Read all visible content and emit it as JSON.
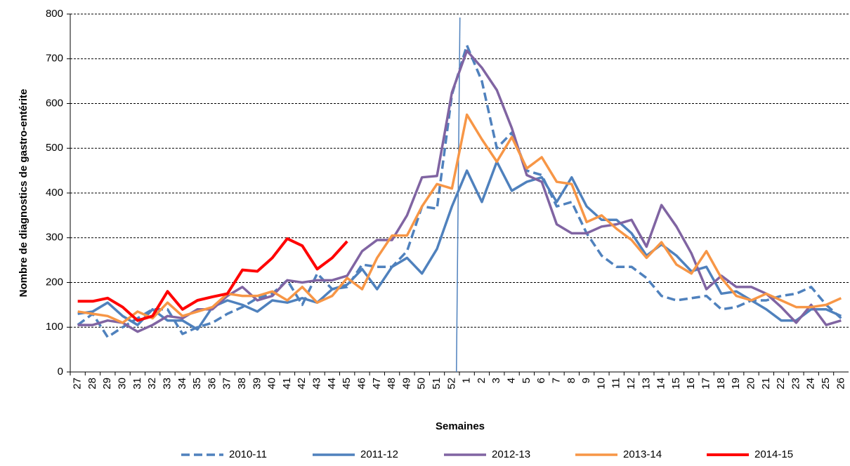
{
  "chart_data": {
    "type": "line",
    "y_label": "Nombre de diagnostics de gastro-entérite",
    "x_label": "Semaines",
    "categories": [
      "27",
      "28",
      "29",
      "30",
      "31",
      "32",
      "33",
      "34",
      "35",
      "36",
      "37",
      "38",
      "39",
      "40",
      "41",
      "42",
      "43",
      "44",
      "45",
      "46",
      "47",
      "48",
      "49",
      "50",
      "51",
      "52",
      "1",
      "2",
      "3",
      "4",
      "5",
      "6",
      "7",
      "8",
      "9",
      "10",
      "11",
      "12",
      "13",
      "14",
      "15",
      "16",
      "17",
      "18",
      "19",
      "20",
      "21",
      "22",
      "23",
      "24",
      "25",
      "26"
    ],
    "ylim": [
      0,
      800
    ],
    "yticks": [
      0,
      100,
      200,
      300,
      400,
      500,
      600,
      700,
      800
    ],
    "grid": true,
    "legend": "bottom",
    "series": [
      {
        "name": "2010-11",
        "color": "#4f81bd",
        "dash": true,
        "values": [
          105,
          130,
          78,
          100,
          120,
          140,
          140,
          85,
          100,
          110,
          130,
          145,
          165,
          175,
          205,
          150,
          220,
          185,
          190,
          240,
          235,
          235,
          270,
          370,
          365,
          620,
          730,
          650,
          500,
          535,
          450,
          440,
          370,
          380,
          310,
          260,
          235,
          235,
          210,
          170,
          160,
          165,
          170,
          140,
          145,
          160,
          160,
          170,
          175,
          190,
          150,
          120
        ]
      },
      {
        "name": "2011-12",
        "color": "#4f81bd",
        "dash": false,
        "values": [
          130,
          135,
          155,
          125,
          105,
          140,
          115,
          115,
          95,
          145,
          160,
          150,
          135,
          160,
          155,
          165,
          155,
          185,
          195,
          230,
          185,
          235,
          255,
          220,
          275,
          370,
          450,
          380,
          470,
          405,
          425,
          435,
          380,
          435,
          370,
          340,
          340,
          310,
          260,
          285,
          260,
          225,
          235,
          175,
          180,
          160,
          140,
          115,
          115,
          140,
          140,
          125
        ]
      },
      {
        "name": "2012-13",
        "color": "#8064a2",
        "dash": false,
        "values": [
          105,
          105,
          115,
          110,
          90,
          105,
          125,
          120,
          140,
          140,
          170,
          190,
          160,
          170,
          205,
          200,
          205,
          205,
          215,
          270,
          295,
          295,
          350,
          435,
          438,
          625,
          718,
          680,
          630,
          545,
          440,
          425,
          330,
          310,
          310,
          325,
          330,
          340,
          280,
          373,
          325,
          265,
          185,
          215,
          190,
          190,
          175,
          145,
          110,
          150,
          105,
          115
        ]
      },
      {
        "name": "2013-14",
        "color": "#f79646",
        "dash": false,
        "values": [
          135,
          130,
          125,
          110,
          135,
          120,
          155,
          125,
          135,
          145,
          175,
          170,
          170,
          180,
          160,
          190,
          155,
          170,
          210,
          185,
          255,
          305,
          305,
          370,
          420,
          410,
          575,
          520,
          470,
          525,
          455,
          480,
          425,
          420,
          335,
          350,
          320,
          295,
          255,
          290,
          240,
          220,
          270,
          210,
          170,
          160,
          175,
          160,
          145,
          145,
          150,
          165
        ]
      },
      {
        "name": "2014-15",
        "color": "#ff0000",
        "dash": false,
        "values": [
          158,
          158,
          165,
          145,
          115,
          125,
          180,
          140,
          160,
          168,
          175,
          228,
          225,
          255,
          298,
          282,
          230,
          255,
          292,
          null,
          null,
          null,
          null,
          null,
          null,
          null,
          null,
          null,
          null,
          null,
          null,
          null,
          null,
          null,
          null,
          null,
          null,
          null,
          null,
          null,
          null,
          null,
          null,
          null,
          null,
          null,
          null,
          null,
          null,
          null,
          null,
          null
        ]
      }
    ]
  }
}
